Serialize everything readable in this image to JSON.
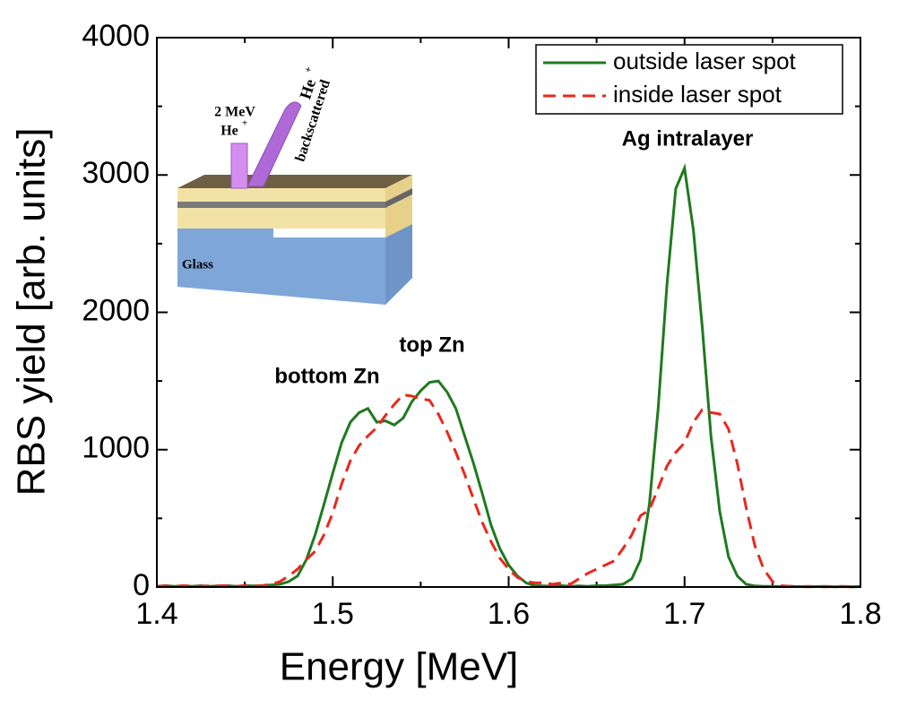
{
  "chart_data": {
    "type": "line",
    "xlabel": "Energy [MeV]",
    "ylabel": "RBS yield [arb. units]",
    "x": [
      1.4,
      1.405,
      1.41,
      1.415,
      1.42,
      1.425,
      1.43,
      1.435,
      1.44,
      1.445,
      1.45,
      1.455,
      1.46,
      1.465,
      1.47,
      1.475,
      1.48,
      1.485,
      1.49,
      1.495,
      1.5,
      1.505,
      1.51,
      1.515,
      1.52,
      1.525,
      1.53,
      1.535,
      1.54,
      1.545,
      1.55,
      1.555,
      1.56,
      1.565,
      1.57,
      1.575,
      1.58,
      1.585,
      1.59,
      1.595,
      1.6,
      1.605,
      1.61,
      1.615,
      1.62,
      1.625,
      1.63,
      1.635,
      1.64,
      1.645,
      1.65,
      1.655,
      1.66,
      1.665,
      1.67,
      1.675,
      1.68,
      1.685,
      1.69,
      1.695,
      1.7,
      1.705,
      1.71,
      1.715,
      1.72,
      1.725,
      1.73,
      1.735,
      1.74,
      1.745,
      1.75,
      1.755,
      1.76,
      1.765,
      1.77,
      1.775,
      1.78,
      1.785,
      1.79,
      1.795,
      1.8
    ],
    "series": [
      {
        "name": "outside laser spot",
        "color": "#1f7a1f",
        "dash": "solid",
        "values": [
          5,
          10,
          5,
          8,
          5,
          10,
          5,
          8,
          10,
          5,
          10,
          8,
          10,
          15,
          20,
          40,
          80,
          200,
          380,
          600,
          830,
          1050,
          1200,
          1270,
          1300,
          1200,
          1210,
          1180,
          1230,
          1350,
          1430,
          1490,
          1500,
          1420,
          1300,
          1100,
          900,
          680,
          450,
          280,
          160,
          80,
          30,
          10,
          8,
          5,
          10,
          5,
          8,
          5,
          10,
          10,
          15,
          20,
          60,
          200,
          600,
          1300,
          2200,
          2900,
          3050,
          2600,
          1900,
          1100,
          550,
          220,
          80,
          20,
          8,
          5,
          5,
          3,
          5,
          3,
          2,
          3,
          5,
          2,
          3,
          2,
          3
        ]
      },
      {
        "name": "inside laser spot",
        "color": "#e8281e",
        "dash": "dashed",
        "values": [
          5,
          8,
          5,
          10,
          8,
          5,
          10,
          8,
          10,
          5,
          10,
          8,
          10,
          20,
          40,
          80,
          130,
          200,
          260,
          380,
          540,
          750,
          920,
          1030,
          1100,
          1160,
          1250,
          1330,
          1400,
          1390,
          1370,
          1360,
          1260,
          1130,
          980,
          820,
          640,
          470,
          330,
          210,
          130,
          70,
          40,
          30,
          30,
          20,
          30,
          20,
          60,
          100,
          130,
          160,
          190,
          280,
          380,
          520,
          560,
          720,
          880,
          980,
          1050,
          1200,
          1290,
          1270,
          1260,
          1150,
          900,
          580,
          300,
          130,
          40,
          10,
          5,
          3,
          5,
          3,
          2,
          3,
          5,
          2,
          3
        ]
      }
    ],
    "xlim": [
      1.4,
      1.8
    ],
    "xticks": [
      1.4,
      1.5,
      1.6,
      1.7,
      1.8
    ],
    "ylim": [
      0,
      4000
    ],
    "yticks": [
      0,
      1000,
      2000,
      3000,
      4000
    ],
    "legend": "upper right",
    "annotations": [
      "bottom Zn",
      "top Zn",
      "Ag intralayer"
    ],
    "inset_labels": [
      "2 MeV",
      "He",
      "+",
      "He",
      "+",
      "backscattered",
      "Glass"
    ]
  }
}
